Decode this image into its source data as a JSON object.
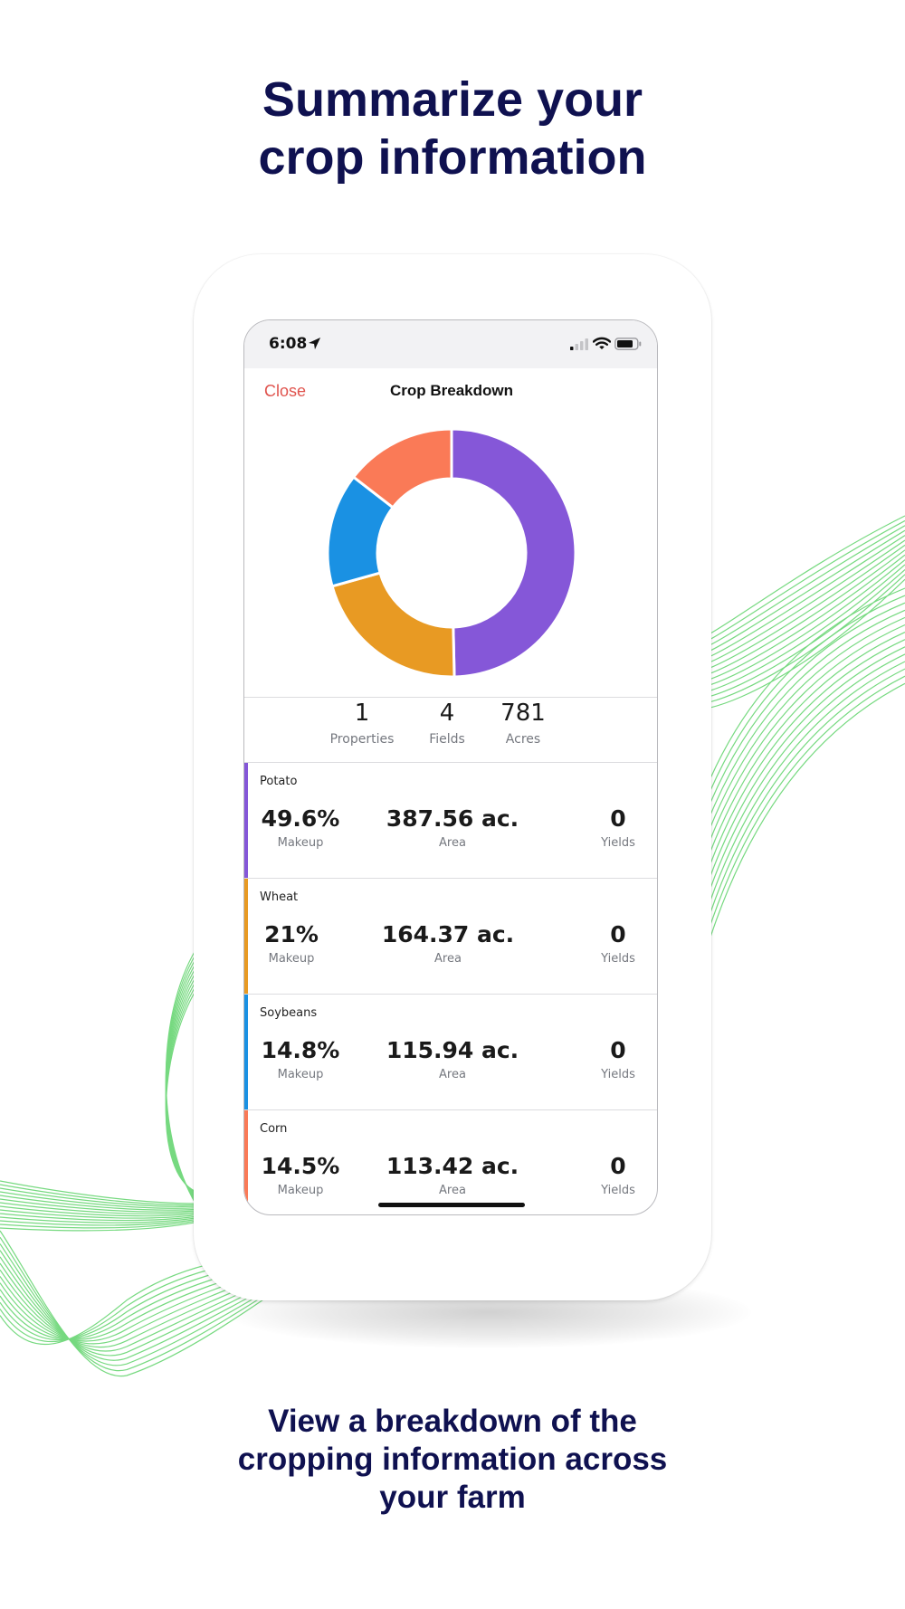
{
  "headline": {
    "line1": "Summarize your",
    "line2": "crop information"
  },
  "subline": {
    "line1": "View a breakdown of the",
    "line2": "cropping information across",
    "line3": "your farm"
  },
  "status_bar": {
    "time": "6:08"
  },
  "nav": {
    "close_label": "Close",
    "title": "Crop Breakdown"
  },
  "stats": [
    {
      "value": "1",
      "label": "Properties"
    },
    {
      "value": "4",
      "label": "Fields"
    },
    {
      "value": "781",
      "label": "Acres"
    }
  ],
  "crops": [
    {
      "name": "Potato",
      "makeup": "49.6%",
      "makeup_label": "Makeup",
      "area": "387.56 ac.",
      "area_label": "Area",
      "yields": "0",
      "yields_label": "Yields",
      "color": "#8557d8"
    },
    {
      "name": "Wheat",
      "makeup": "21%",
      "makeup_label": "Makeup",
      "area": "164.37 ac.",
      "area_label": "Area",
      "yields": "0",
      "yields_label": "Yields",
      "color": "#e89a23"
    },
    {
      "name": "Soybeans",
      "makeup": "14.8%",
      "makeup_label": "Makeup",
      "area": "115.94 ac.",
      "area_label": "Area",
      "yields": "0",
      "yields_label": "Yields",
      "color": "#1a91e3"
    },
    {
      "name": "Corn",
      "makeup": "14.5%",
      "makeup_label": "Makeup",
      "area": "113.42 ac.",
      "area_label": "Area",
      "yields": "0",
      "yields_label": "Yields",
      "color": "#fa7a57"
    }
  ],
  "chart_data": {
    "type": "pie",
    "categories": [
      "Potato",
      "Wheat",
      "Soybeans",
      "Corn"
    ],
    "values": [
      49.6,
      21,
      14.8,
      14.5
    ],
    "colors": [
      "#8557d8",
      "#e89a23",
      "#1a91e3",
      "#fa7a57"
    ],
    "title": "",
    "donut": true
  },
  "colors": {
    "headline": "#0f1150",
    "close": "#e0544e",
    "wave": "#5fd36a"
  },
  "icons": {
    "location": "location-arrow-icon",
    "signal": "cellular-signal-icon",
    "wifi": "wifi-icon",
    "battery": "battery-icon"
  }
}
